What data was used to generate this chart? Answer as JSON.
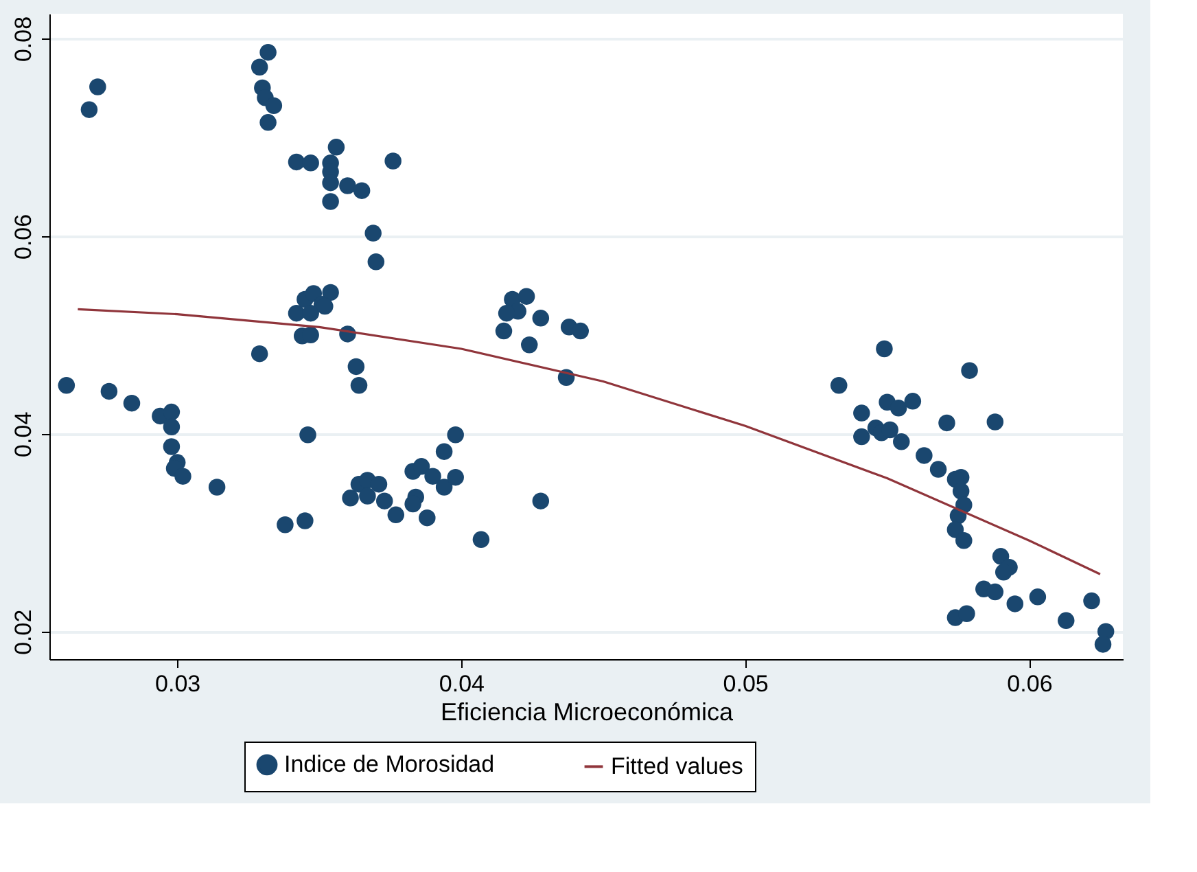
{
  "chart_data": {
    "type": "scatter",
    "xlabel": "Eficiencia Microeconómica",
    "xlim": [
      0.0255,
      0.0633
    ],
    "ylim": [
      0.0172,
      0.0825
    ],
    "xticks": [
      0.03,
      0.04,
      0.05,
      0.06
    ],
    "yticks": [
      0.02,
      0.04,
      0.06,
      0.08
    ],
    "grid": "y",
    "legend": "bottom",
    "series": [
      {
        "name": "Indice de Morosidad",
        "marker": "circle",
        "color": "#1a476f",
        "x": [
          0.0261,
          0.0269,
          0.0272,
          0.0276,
          0.0284,
          0.0294,
          0.0298,
          0.0298,
          0.0298,
          0.03,
          0.0299,
          0.0302,
          0.0314,
          0.0332,
          0.0329,
          0.033,
          0.0331,
          0.0334,
          0.0332,
          0.0342,
          0.0347,
          0.0356,
          0.0354,
          0.0354,
          0.0354,
          0.036,
          0.0365,
          0.0354,
          0.0376,
          0.0369,
          0.037,
          0.0342,
          0.0345,
          0.0348,
          0.0354,
          0.0351,
          0.0347,
          0.0352,
          0.0344,
          0.0347,
          0.036,
          0.0329,
          0.0363,
          0.0364,
          0.0346,
          0.0338,
          0.0345,
          0.0361,
          0.0364,
          0.0367,
          0.0371,
          0.0367,
          0.0373,
          0.0377,
          0.0383,
          0.0386,
          0.039,
          0.0394,
          0.0398,
          0.0394,
          0.0398,
          0.0384,
          0.0383,
          0.0388,
          0.0407,
          0.0428,
          0.0418,
          0.0423,
          0.042,
          0.0416,
          0.0428,
          0.0415,
          0.0424,
          0.0438,
          0.0442,
          0.0437,
          0.0549,
          0.0533,
          0.0579,
          0.0541,
          0.055,
          0.0554,
          0.0559,
          0.0571,
          0.0588,
          0.0541,
          0.0546,
          0.0548,
          0.0551,
          0.0555,
          0.0563,
          0.0568,
          0.0576,
          0.0574,
          0.0576,
          0.0577,
          0.0575,
          0.0574,
          0.0577,
          0.059,
          0.0593,
          0.0591,
          0.0584,
          0.0588,
          0.0595,
          0.0603,
          0.0622,
          0.0613,
          0.0574,
          0.0578,
          0.0627,
          0.0626
        ],
        "values": [
          0.0449,
          0.0728,
          0.0751,
          0.0443,
          0.0431,
          0.0418,
          0.0422,
          0.0407,
          0.0387,
          0.0371,
          0.0365,
          0.0357,
          0.0346,
          0.0786,
          0.0771,
          0.075,
          0.074,
          0.0732,
          0.0715,
          0.0675,
          0.0674,
          0.069,
          0.0674,
          0.0665,
          0.0654,
          0.0651,
          0.0646,
          0.0635,
          0.0676,
          0.0603,
          0.0574,
          0.0522,
          0.0536,
          0.0542,
          0.0543,
          0.0531,
          0.0522,
          0.0529,
          0.0499,
          0.05,
          0.0501,
          0.0481,
          0.0468,
          0.0449,
          0.0399,
          0.0308,
          0.0312,
          0.0335,
          0.0349,
          0.0353,
          0.0349,
          0.0337,
          0.0332,
          0.0318,
          0.0362,
          0.0367,
          0.0357,
          0.0346,
          0.0356,
          0.0382,
          0.0399,
          0.0336,
          0.0329,
          0.0315,
          0.0293,
          0.0332,
          0.0536,
          0.0539,
          0.0524,
          0.0522,
          0.0517,
          0.0504,
          0.049,
          0.0508,
          0.0504,
          0.0457,
          0.0486,
          0.0449,
          0.0464,
          0.0421,
          0.0432,
          0.0426,
          0.0433,
          0.0411,
          0.0412,
          0.0397,
          0.0406,
          0.0401,
          0.0404,
          0.0392,
          0.0378,
          0.0364,
          0.0356,
          0.0354,
          0.0342,
          0.0328,
          0.0317,
          0.0303,
          0.0292,
          0.0276,
          0.0265,
          0.026,
          0.0243,
          0.024,
          0.0228,
          0.0235,
          0.0231,
          0.0211,
          0.0214,
          0.0218,
          0.02,
          0.0187
        ]
      },
      {
        "name": "Fitted values",
        "type": "line",
        "marker": "none",
        "line_style": "solid",
        "color": "#90353b",
        "x": [
          0.0265,
          0.03,
          0.035,
          0.04,
          0.045,
          0.05,
          0.055,
          0.06,
          0.0625
        ],
        "values": [
          0.0526,
          0.0521,
          0.0508,
          0.0486,
          0.0453,
          0.0408,
          0.0355,
          0.0292,
          0.0258
        ]
      }
    ]
  }
}
